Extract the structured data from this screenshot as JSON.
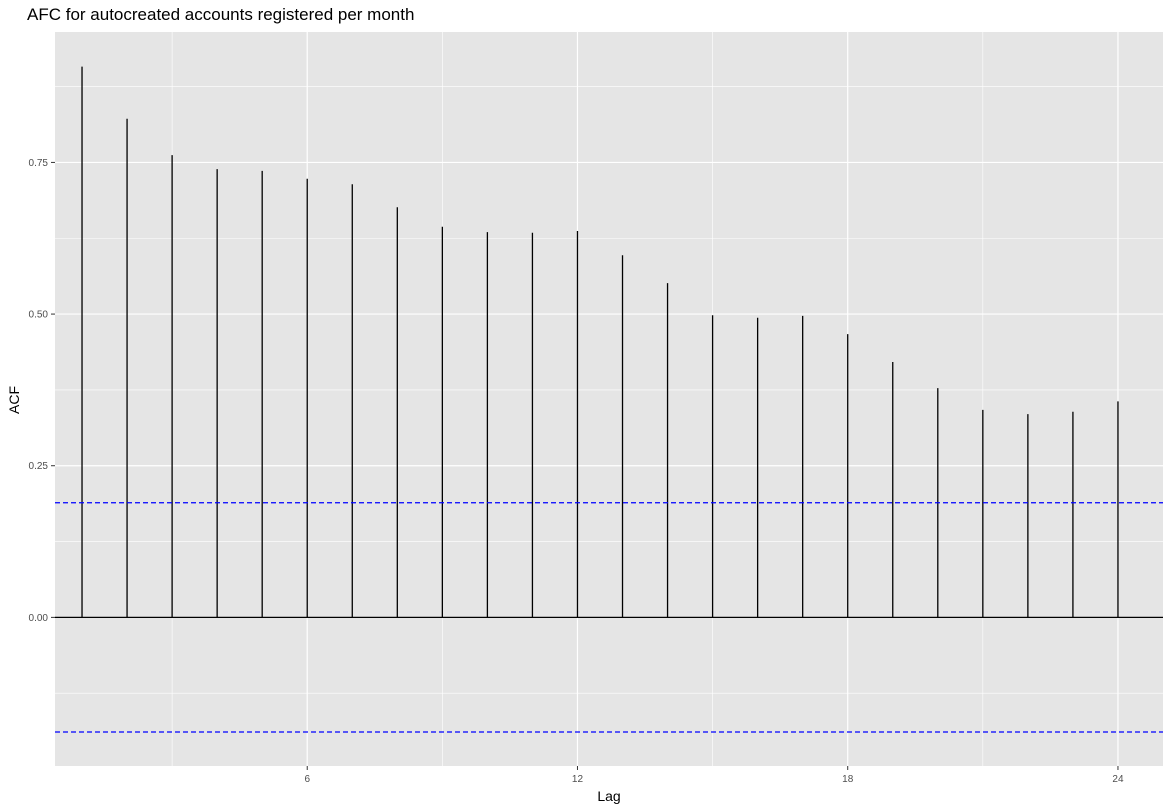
{
  "chart_data": {
    "type": "bar",
    "title": "AFC for autocreated accounts registered per month",
    "xlabel": "Lag",
    "ylabel": "ACF",
    "x": [
      1,
      2,
      3,
      4,
      5,
      6,
      7,
      8,
      9,
      10,
      11,
      12,
      13,
      14,
      15,
      16,
      17,
      18,
      19,
      20,
      21,
      22,
      23,
      24
    ],
    "values": [
      0.908,
      0.822,
      0.762,
      0.739,
      0.736,
      0.723,
      0.714,
      0.676,
      0.644,
      0.635,
      0.634,
      0.637,
      0.597,
      0.551,
      0.498,
      0.494,
      0.497,
      0.467,
      0.421,
      0.378,
      0.342,
      0.335,
      0.339,
      0.356
    ],
    "confidence_limit": 0.189,
    "xlim": [
      0.4,
      25.0
    ],
    "ylim": [
      -0.245,
      0.965
    ],
    "x_ticks": [
      6,
      12,
      18,
      24
    ],
    "y_ticks": [
      0,
      0.25,
      0.5,
      0.75
    ],
    "x_tick_labels": [
      "6",
      "12",
      "18",
      "24"
    ],
    "y_tick_labels": [
      "0.00",
      "0.25",
      "0.50",
      "0.75"
    ],
    "grid": true,
    "colors": {
      "panel_background": "#e5e5e5",
      "grid": "#ffffff",
      "bars": "#000000",
      "confidence_lines": "#0000ff"
    }
  }
}
